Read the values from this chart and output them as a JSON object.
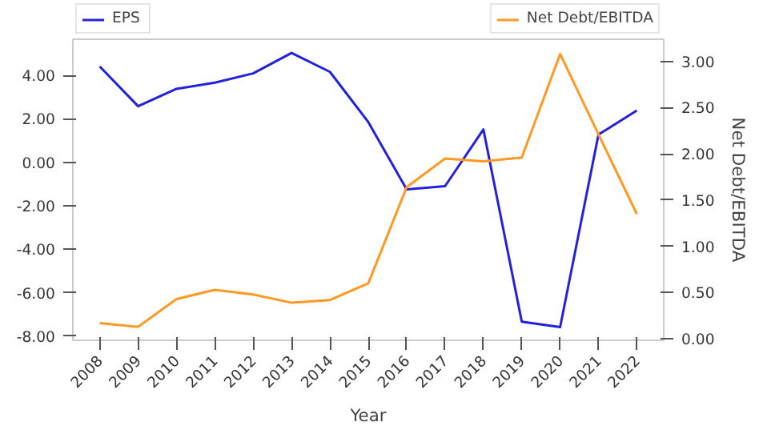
{
  "chart_data": {
    "type": "line",
    "xlabel": "Year",
    "y2label": "Net Debt/EBITDA",
    "categories": [
      "2008",
      "2009",
      "2010",
      "2011",
      "2012",
      "2013",
      "2014",
      "2015",
      "2016",
      "2017",
      "2018",
      "2019",
      "2020",
      "2021",
      "2022"
    ],
    "series": [
      {
        "name": "EPS",
        "color": "#2222dd",
        "values": [
          4.41,
          2.58,
          3.38,
          3.66,
          4.09,
          5.03,
          4.16,
          1.85,
          -1.25,
          -1.1,
          1.51,
          -7.33,
          -7.58,
          1.28,
          2.38
        ]
      },
      {
        "name": "Net Debt/EBITDA",
        "color": "#ff9922",
        "axis": "y2",
        "values": [
          0.17,
          0.13,
          0.43,
          0.53,
          0.48,
          0.39,
          0.42,
          0.6,
          1.64,
          1.95,
          1.92,
          1.96,
          3.08,
          2.21,
          1.35
        ]
      }
    ],
    "ylim": [
      -8.19,
      5.66
    ],
    "yticks": [
      {
        "value": -8,
        "label": "-8.00"
      },
      {
        "value": -6,
        "label": "-6.00"
      },
      {
        "value": -4,
        "label": "-4.00"
      },
      {
        "value": -2,
        "label": "-2.00"
      },
      {
        "value": 0,
        "label": "0.00"
      },
      {
        "value": 2,
        "label": "2.00"
      },
      {
        "value": 4,
        "label": "4.00"
      }
    ],
    "y2lim": [
      -0.016,
      3.24
    ],
    "y2ticks": [
      {
        "value": 0,
        "label": "0.00"
      },
      {
        "value": 0.5,
        "label": "0.50"
      },
      {
        "value": 1,
        "label": "1.00"
      },
      {
        "value": 1.5,
        "label": "1.50"
      },
      {
        "value": 2,
        "label": "2.00"
      },
      {
        "value": 2.5,
        "label": "2.50"
      },
      {
        "value": 3,
        "label": "3.00"
      }
    ],
    "grid": false,
    "legend": "top"
  }
}
